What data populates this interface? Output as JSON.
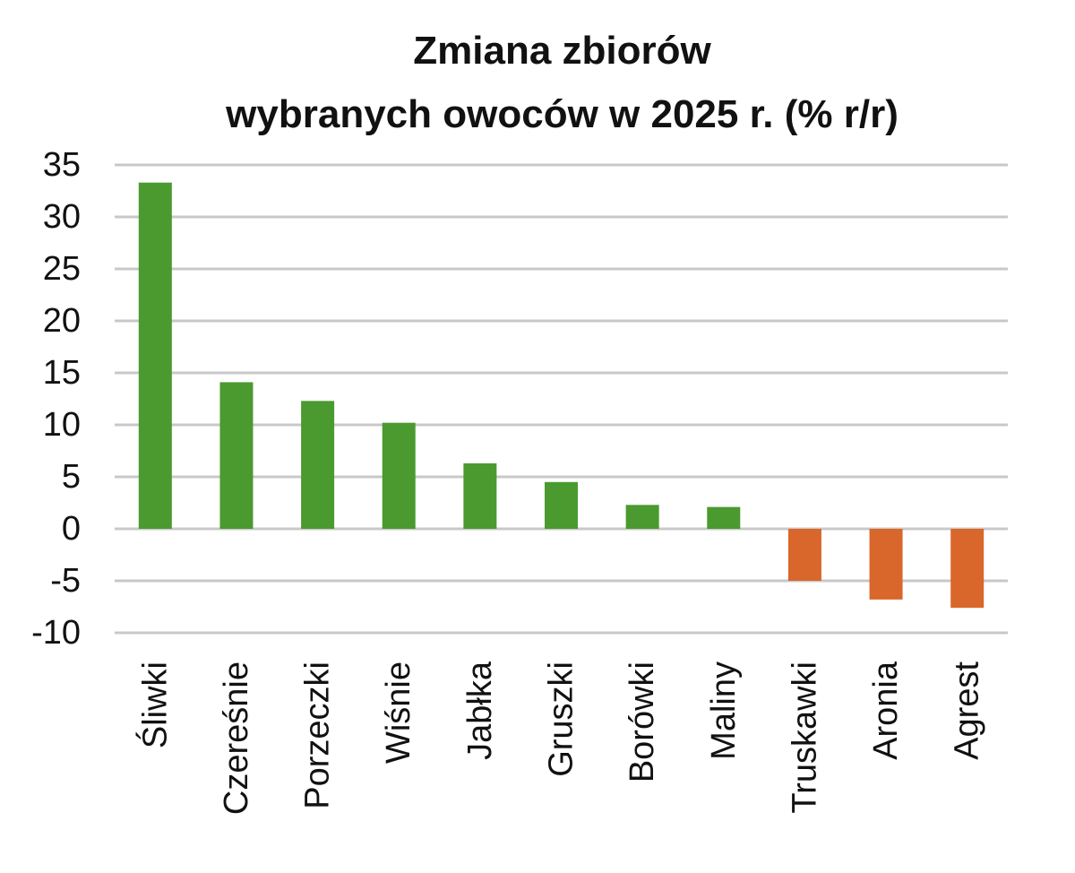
{
  "chart_data": {
    "type": "bar",
    "title": [
      "Zmiana zbiorów",
      "wybranych owoców w 2025 r. (% r/r)"
    ],
    "categories": [
      "Śliwki",
      "Czereśnie",
      "Porzeczki",
      "Wiśnie",
      "Jabłka",
      "Gruszki",
      "Borówki",
      "Maliny",
      "Truskawki",
      "Aronia",
      "Agrest"
    ],
    "values": [
      33.3,
      14.1,
      12.3,
      10.2,
      6.3,
      4.5,
      2.3,
      2.1,
      -5.0,
      -6.8,
      -7.6
    ],
    "ylim": [
      -10,
      35
    ],
    "yticks": [
      35,
      30,
      25,
      20,
      15,
      10,
      5,
      0,
      -5,
      -10
    ],
    "grid": true,
    "colors": {
      "positive": "#4a9a30",
      "negative": "#d9662a",
      "grid": "#c8c8c8"
    }
  }
}
